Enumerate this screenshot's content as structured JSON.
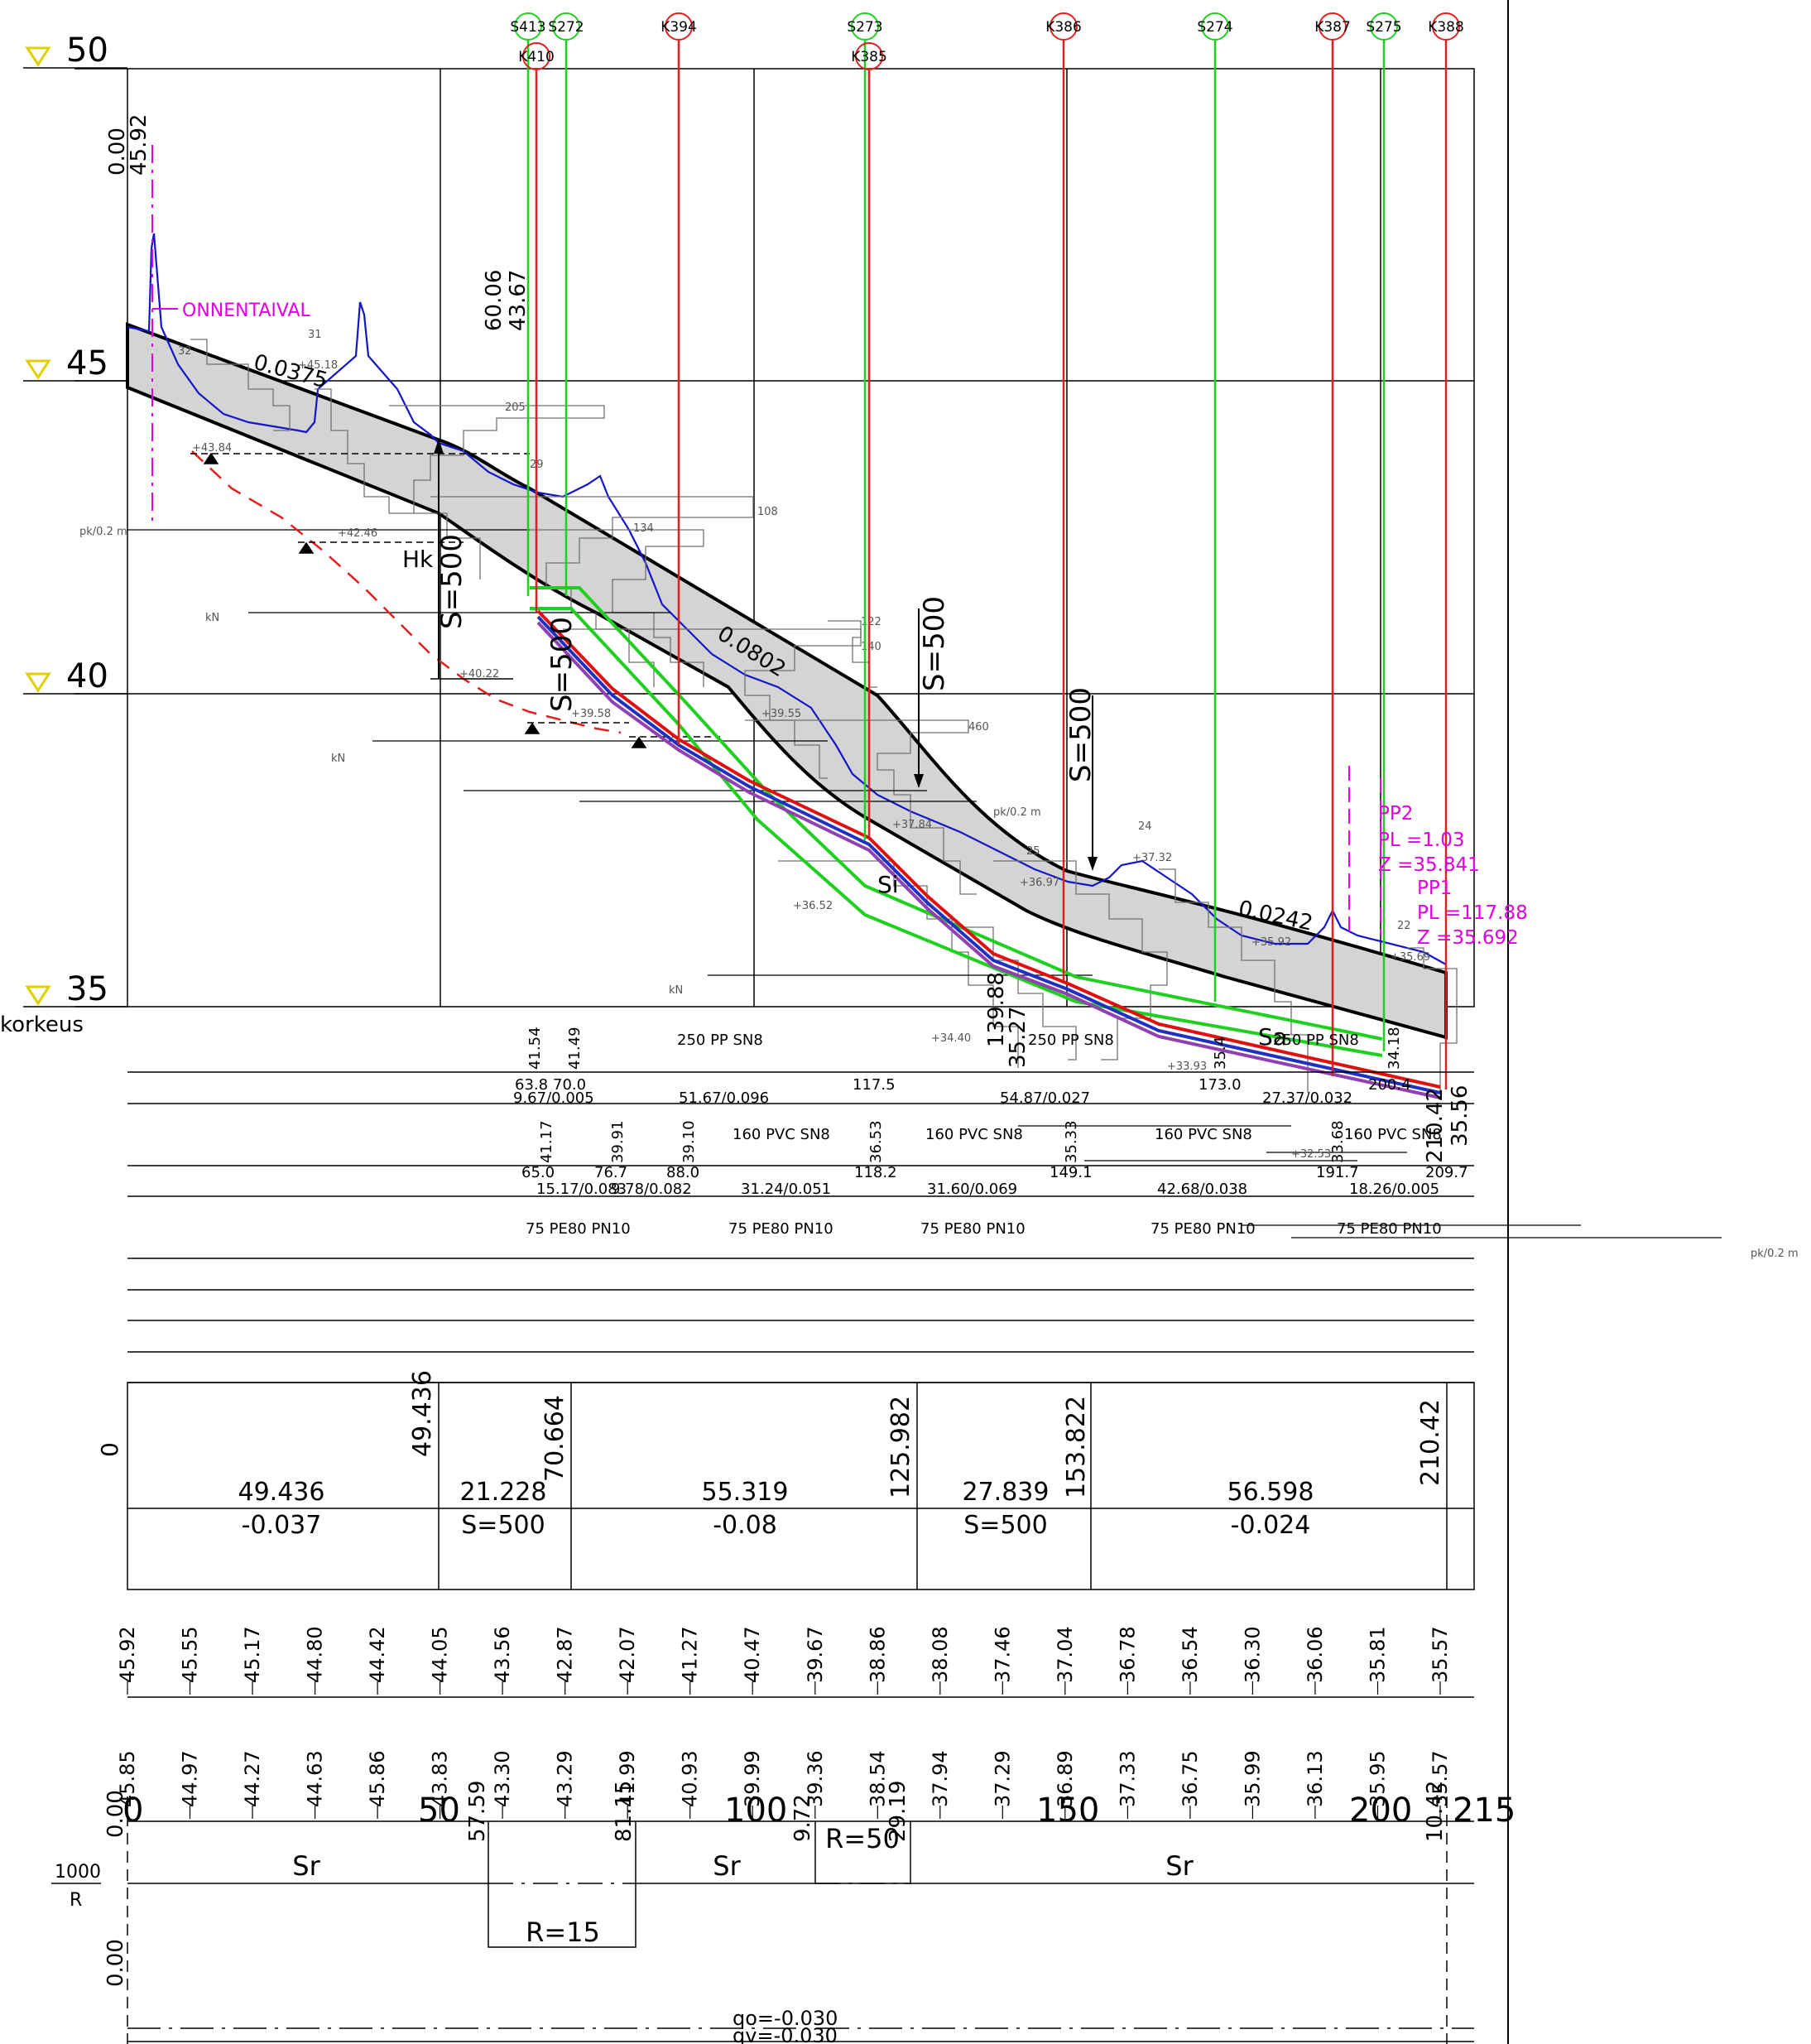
{
  "elevation_levels": [
    {
      "label": "50"
    },
    {
      "label": "45"
    },
    {
      "label": "40"
    },
    {
      "label": "35"
    }
  ],
  "left_labels": {
    "korkeus": "korkeus",
    "frac_top": "1000",
    "frac_bottom": "R"
  },
  "structures": [
    {
      "id": "S413",
      "type": "sewer"
    },
    {
      "id": "S272",
      "type": "sewer"
    },
    {
      "id": "K394",
      "type": "water"
    },
    {
      "id": "S273",
      "type": "sewer"
    },
    {
      "id": "K386",
      "type": "water"
    },
    {
      "id": "S274",
      "type": "sewer"
    },
    {
      "id": "K387",
      "type": "water"
    },
    {
      "id": "S275",
      "type": "sewer"
    },
    {
      "id": "K388",
      "type": "water"
    }
  ],
  "structures_second_row": [
    {
      "id": "K410"
    },
    {
      "id": "K385"
    }
  ],
  "place_label": "ONNENTAIVAL",
  "start_marks": {
    "chainage": "0.00",
    "ground": "45.92"
  },
  "top_marks": [
    "60.06",
    "43.67"
  ],
  "grade_labels": [
    "0.0375",
    "0.0802",
    "0.0242"
  ],
  "curve_labels": [
    "S=500",
    "S=500",
    "S=500",
    "S=500"
  ],
  "soil_labels": [
    "Hk",
    "Si",
    "Sa"
  ],
  "profile_points": [
    {
      "name": "PP2",
      "pl": "PL =1.03",
      "z": "Z =35.841"
    },
    {
      "name": "PP1",
      "pl": "PL =117.88",
      "z": "Z =35.692"
    }
  ],
  "sounding_small_labels": [
    "31",
    "32",
    "+45.18",
    "+43.84",
    "+42.46",
    "+40.22",
    "205",
    "29",
    "+39.58",
    "134",
    "108",
    "122",
    "140",
    "460",
    "+39.55",
    "+37.84",
    "+37.32",
    "25",
    "24",
    "+36.52",
    "+36.97",
    "22",
    "+35.92",
    "+35.69",
    "+34.40",
    "+33.93",
    "+32.53",
    "kN",
    "pk/0.2 m"
  ],
  "pipes": {
    "row1": [
      "41.54",
      "41.49",
      "250 PP SN8",
      "139.88",
      "35.27",
      "250 PP SN8",
      "35.4",
      "250 PP SN8",
      "34.18",
      "35.56"
    ],
    "row1_pos": [
      "63.8",
      "70.0",
      "117.5",
      "173.0",
      "200.4"
    ],
    "row1_grades": [
      "9.67/0.005",
      "51.67/0.096",
      "54.87/0.027",
      "27.37/0.032"
    ],
    "row2": [
      "41.17",
      "39.91",
      "39.10",
      "160 PVC SN8",
      "36.53",
      "160 PVC SN8",
      "35.33",
      "160 PVC SN8",
      "33.68",
      "160 PVC SN8",
      "210.42"
    ],
    "row2_pos": [
      "65.0",
      "76.7",
      "88.0",
      "118.2",
      "149.1",
      "191.7",
      "209.7"
    ],
    "row2_grades": [
      "15.17/0.083",
      "9.78/0.082",
      "31.24/0.051",
      "31.60/0.069",
      "42.68/0.038",
      "18.26/0.005"
    ],
    "row3": [
      "75 PE80 PN10",
      "75 PE80 PN10",
      "75 PE80 PN10",
      "75 PE80 PN10",
      "75 PE80 PN10"
    ]
  },
  "grade_table": {
    "left_value": "0",
    "station_marks": [
      "49.436",
      "70.664",
      "125.982",
      "153.822",
      "210.42"
    ],
    "segments": [
      {
        "length": "49.436",
        "grade": "-0.037"
      },
      {
        "length": "21.228",
        "grade": "S=500"
      },
      {
        "length": "55.319",
        "grade": "-0.08"
      },
      {
        "length": "27.839",
        "grade": "S=500"
      },
      {
        "length": "56.598",
        "grade": "-0.024"
      }
    ]
  },
  "design_elevations": [
    "45.92",
    "45.55",
    "45.17",
    "44.80",
    "44.42",
    "44.05",
    "43.56",
    "42.87",
    "42.07",
    "41.27",
    "40.47",
    "39.67",
    "38.86",
    "38.08",
    "37.46",
    "37.04",
    "36.78",
    "36.54",
    "36.30",
    "36.06",
    "35.81",
    "35.57"
  ],
  "ground_elevations": [
    "45.85",
    "44.97",
    "44.27",
    "44.63",
    "45.86",
    "43.83",
    "43.30",
    "43.29",
    "41.99",
    "40.93",
    "39.99",
    "39.36",
    "38.54",
    "37.94",
    "37.29",
    "36.89",
    "37.33",
    "36.75",
    "35.99",
    "36.13",
    "35.95",
    "35.57"
  ],
  "chainage_axis": {
    "ticks": [
      "0",
      "50",
      "100",
      "150",
      "200",
      "215"
    ]
  },
  "horizontal_alignment": {
    "start": "0.00",
    "marks": [
      "57.59",
      "81.15",
      "9.72",
      "29.19",
      "10.42"
    ],
    "labels": [
      "Sr",
      "Sr",
      "Sr"
    ],
    "curves": [
      "R=15",
      "R=50"
    ],
    "end_start": "0.00"
  },
  "crossfall": {
    "qo": "qo=-0.030",
    "qv": "qv=-0.030"
  }
}
